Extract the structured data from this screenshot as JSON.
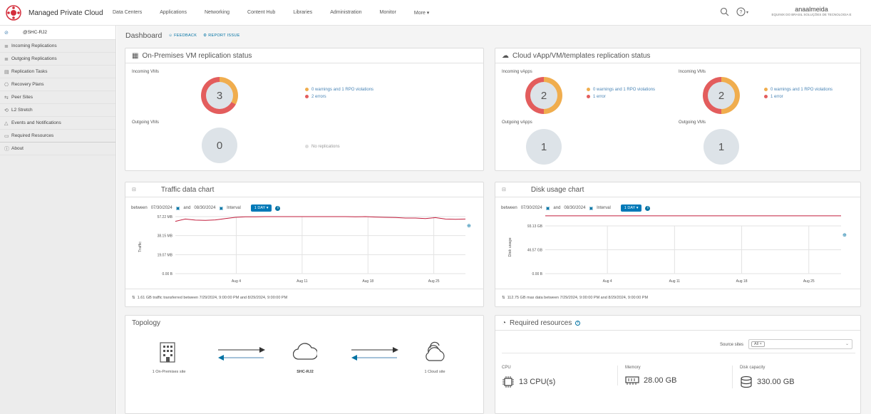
{
  "header": {
    "brand": "Managed Private Cloud",
    "nav": [
      "Data Centers",
      "Applications",
      "Networking",
      "Content Hub",
      "Libraries",
      "Administration",
      "Monitor",
      "More ▾"
    ],
    "user_name": "anaalmeida",
    "user_org": "EQUINIX DO BRASIL SOLUÇÕES DE TECNOLOGIA E",
    "icons": [
      "search-icon",
      "help-icon"
    ]
  },
  "sidebar": {
    "site": "@SHC-RJ2",
    "items": [
      {
        "icon": "≣",
        "label": "Incoming Replications"
      },
      {
        "icon": "≣",
        "label": "Outgoing Replications"
      },
      {
        "icon": "▤",
        "label": "Replication Tasks"
      },
      {
        "icon": "⎔",
        "label": "Recovery Plans"
      },
      {
        "icon": "⇆",
        "label": "Peer Sites"
      },
      {
        "icon": "⟲",
        "label": "L2 Stretch"
      },
      {
        "icon": "△",
        "label": "Events and Notifications"
      },
      {
        "icon": "▭",
        "label": "Required Resources"
      },
      {
        "icon": "ⓘ",
        "label": "About"
      }
    ]
  },
  "dashboard": {
    "title": "Dashboard",
    "feedback": "FEEDBACK",
    "report": "REPORT ISSUE"
  },
  "onprem": {
    "title": "On-Premises VM replication status",
    "incoming_label": "Incoming VMs",
    "incoming_value": "3",
    "warn_text": "0 warnings and 1 RPO violations",
    "err_text": "2 errors",
    "outgoing_label": "Outgoing VMs",
    "outgoing_value": "0",
    "no_rep": "No replications"
  },
  "cloud": {
    "title": "Cloud vApp/VM/templates replication status",
    "in_vapps_label": "Incoming vApps",
    "in_vapps_value": "2",
    "in_vapps_warn": "0 warnings and 1 RPO violations",
    "in_vapps_err": "1 error",
    "in_vms_label": "Incoming VMs",
    "in_vms_value": "2",
    "in_vms_warn": "0 warnings and 1 RPO violations",
    "in_vms_err": "1 error",
    "out_vapps_label": "Outgoing vApps",
    "out_vapps_value": "1",
    "out_vms_label": "Outgoing VMs",
    "out_vms_value": "1"
  },
  "traffic": {
    "title": "Traffic data chart",
    "between": "between",
    "from": "07/30/2024",
    "and": "and",
    "to": "08/30/2024",
    "interval_label": "Interval",
    "interval_value": "1 DAY ▾",
    "ylabel": "Traffic",
    "footer": "1.61 GB traffic transferred between 7/29/2024, 9:00:00 PM and 8/29/2024, 9:00:00 PM"
  },
  "disk": {
    "title": "Disk usage chart",
    "between": "between",
    "from": "07/30/2024",
    "and": "and",
    "to": "08/30/2024",
    "interval_label": "Interval",
    "interval_value": "1 DAY ▾",
    "ylabel": "Disk usage",
    "footer": "112.75 GB max data between 7/29/2024, 9:00:00 PM and 8/29/2024, 9:00:00 PM"
  },
  "chart_data": [
    {
      "type": "line",
      "title": "Traffic data chart",
      "ylabel": "Traffic",
      "yticks": [
        "57.22 MB",
        "38.15 MB",
        "19.07 MB",
        "0.00 B"
      ],
      "xticks": [
        "Aug 4",
        "Aug 11",
        "Aug 18",
        "Aug 25"
      ],
      "ylim": [
        0,
        57.22
      ],
      "series": [
        {
          "values": [
            52.5,
            54.8,
            53.7,
            53.4,
            53.9,
            55.3,
            56.5,
            57.0,
            57.1,
            57.2,
            57.2,
            57.2,
            57.2,
            57.2,
            57.2,
            57.2,
            57.2,
            57.2,
            57.0,
            57.2,
            56.8,
            56.5,
            56.3,
            55.8,
            55.8,
            55.3,
            56.2,
            54.8,
            54.6,
            54.8
          ]
        }
      ]
    },
    {
      "type": "line",
      "title": "Disk usage chart",
      "ylabel": "Disk usage",
      "yticks": [
        "93.13 GB",
        "46.57 GB",
        "0.00 B"
      ],
      "xticks": [
        "Aug 4",
        "Aug 11",
        "Aug 18",
        "Aug 25"
      ],
      "ylim": [
        0,
        93.13
      ],
      "series": [
        {
          "values": [
            112.75,
            112.75,
            112.75,
            112.75,
            112.75,
            112.75,
            112.75,
            112.75,
            112.75,
            112.75
          ]
        }
      ]
    }
  ],
  "topology": {
    "title": "Topology",
    "left_label": "1 On-Premises site",
    "center_label": "SHC-RJ2",
    "right_label": "1 Cloud site"
  },
  "resources": {
    "title": "Required resources",
    "source_label": "Source sites",
    "source_value": "All ×",
    "cpu_label": "CPU",
    "cpu_value": "13 CPU(s)",
    "mem_label": "Memory",
    "mem_value": "28.00 GB",
    "disk_label": "Disk capacity",
    "disk_value": "330.00 GB"
  },
  "colors": {
    "error": "#e35d5d",
    "warning": "#f0ad4e",
    "link": "#0072a3",
    "chart_line": "#c21d3c"
  }
}
